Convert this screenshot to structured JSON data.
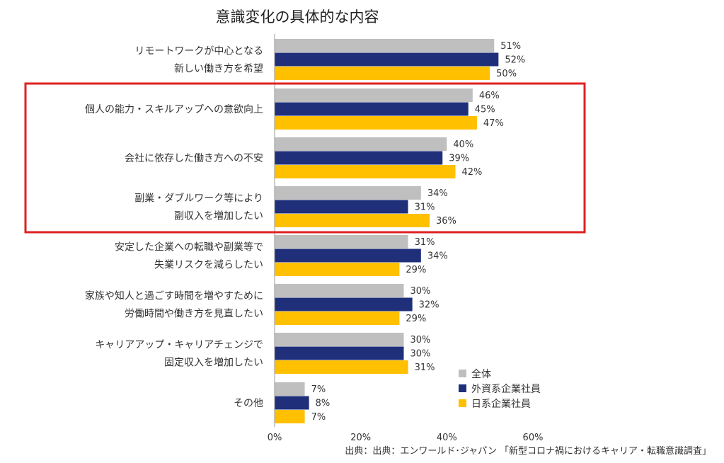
{
  "chart_data": {
    "type": "bar",
    "orientation": "horizontal",
    "title": "意識変化の具体的な内容",
    "categories": [
      [
        "リモートワークが中心となる",
        "新しい働き方を希望"
      ],
      [
        "個人の能力・スキルアップへの意欲向上"
      ],
      [
        "会社に依存した働き方への不安"
      ],
      [
        "副業・ダブルワーク等により",
        "副収入を増加したい"
      ],
      [
        "安定した企業への転職や副業等で",
        "失業リスクを減らしたい"
      ],
      [
        "家族や知人と過ごす時間を増やすために",
        "労働時間や働き方を見直したい"
      ],
      [
        "キャリアアップ・キャリアチェンジで",
        "固定収入を増加したい"
      ],
      [
        "その他"
      ]
    ],
    "series": [
      {
        "name": "全体",
        "color": "#bfbfbf",
        "values": [
          51,
          46,
          40,
          34,
          31,
          30,
          30,
          7
        ]
      },
      {
        "name": "外資系企業社員",
        "color": "#1f2f7a",
        "values": [
          52,
          45,
          39,
          31,
          34,
          32,
          30,
          8
        ]
      },
      {
        "name": "日系企業社員",
        "color": "#ffc000",
        "values": [
          50,
          47,
          42,
          36,
          29,
          29,
          31,
          7
        ]
      }
    ],
    "value_suffix": "%",
    "xlim": [
      0,
      60
    ],
    "xticks": [
      "0%",
      "20%",
      "40%",
      "60%"
    ],
    "grid": false,
    "legend_position": "bottom-right",
    "highlight": {
      "categories": [
        1,
        2,
        3
      ],
      "color": "#e02020"
    }
  },
  "source": "出典：出典：エンワールド･ジャパン 「新型コロナ禍におけるキャリア・転職意識調査」"
}
